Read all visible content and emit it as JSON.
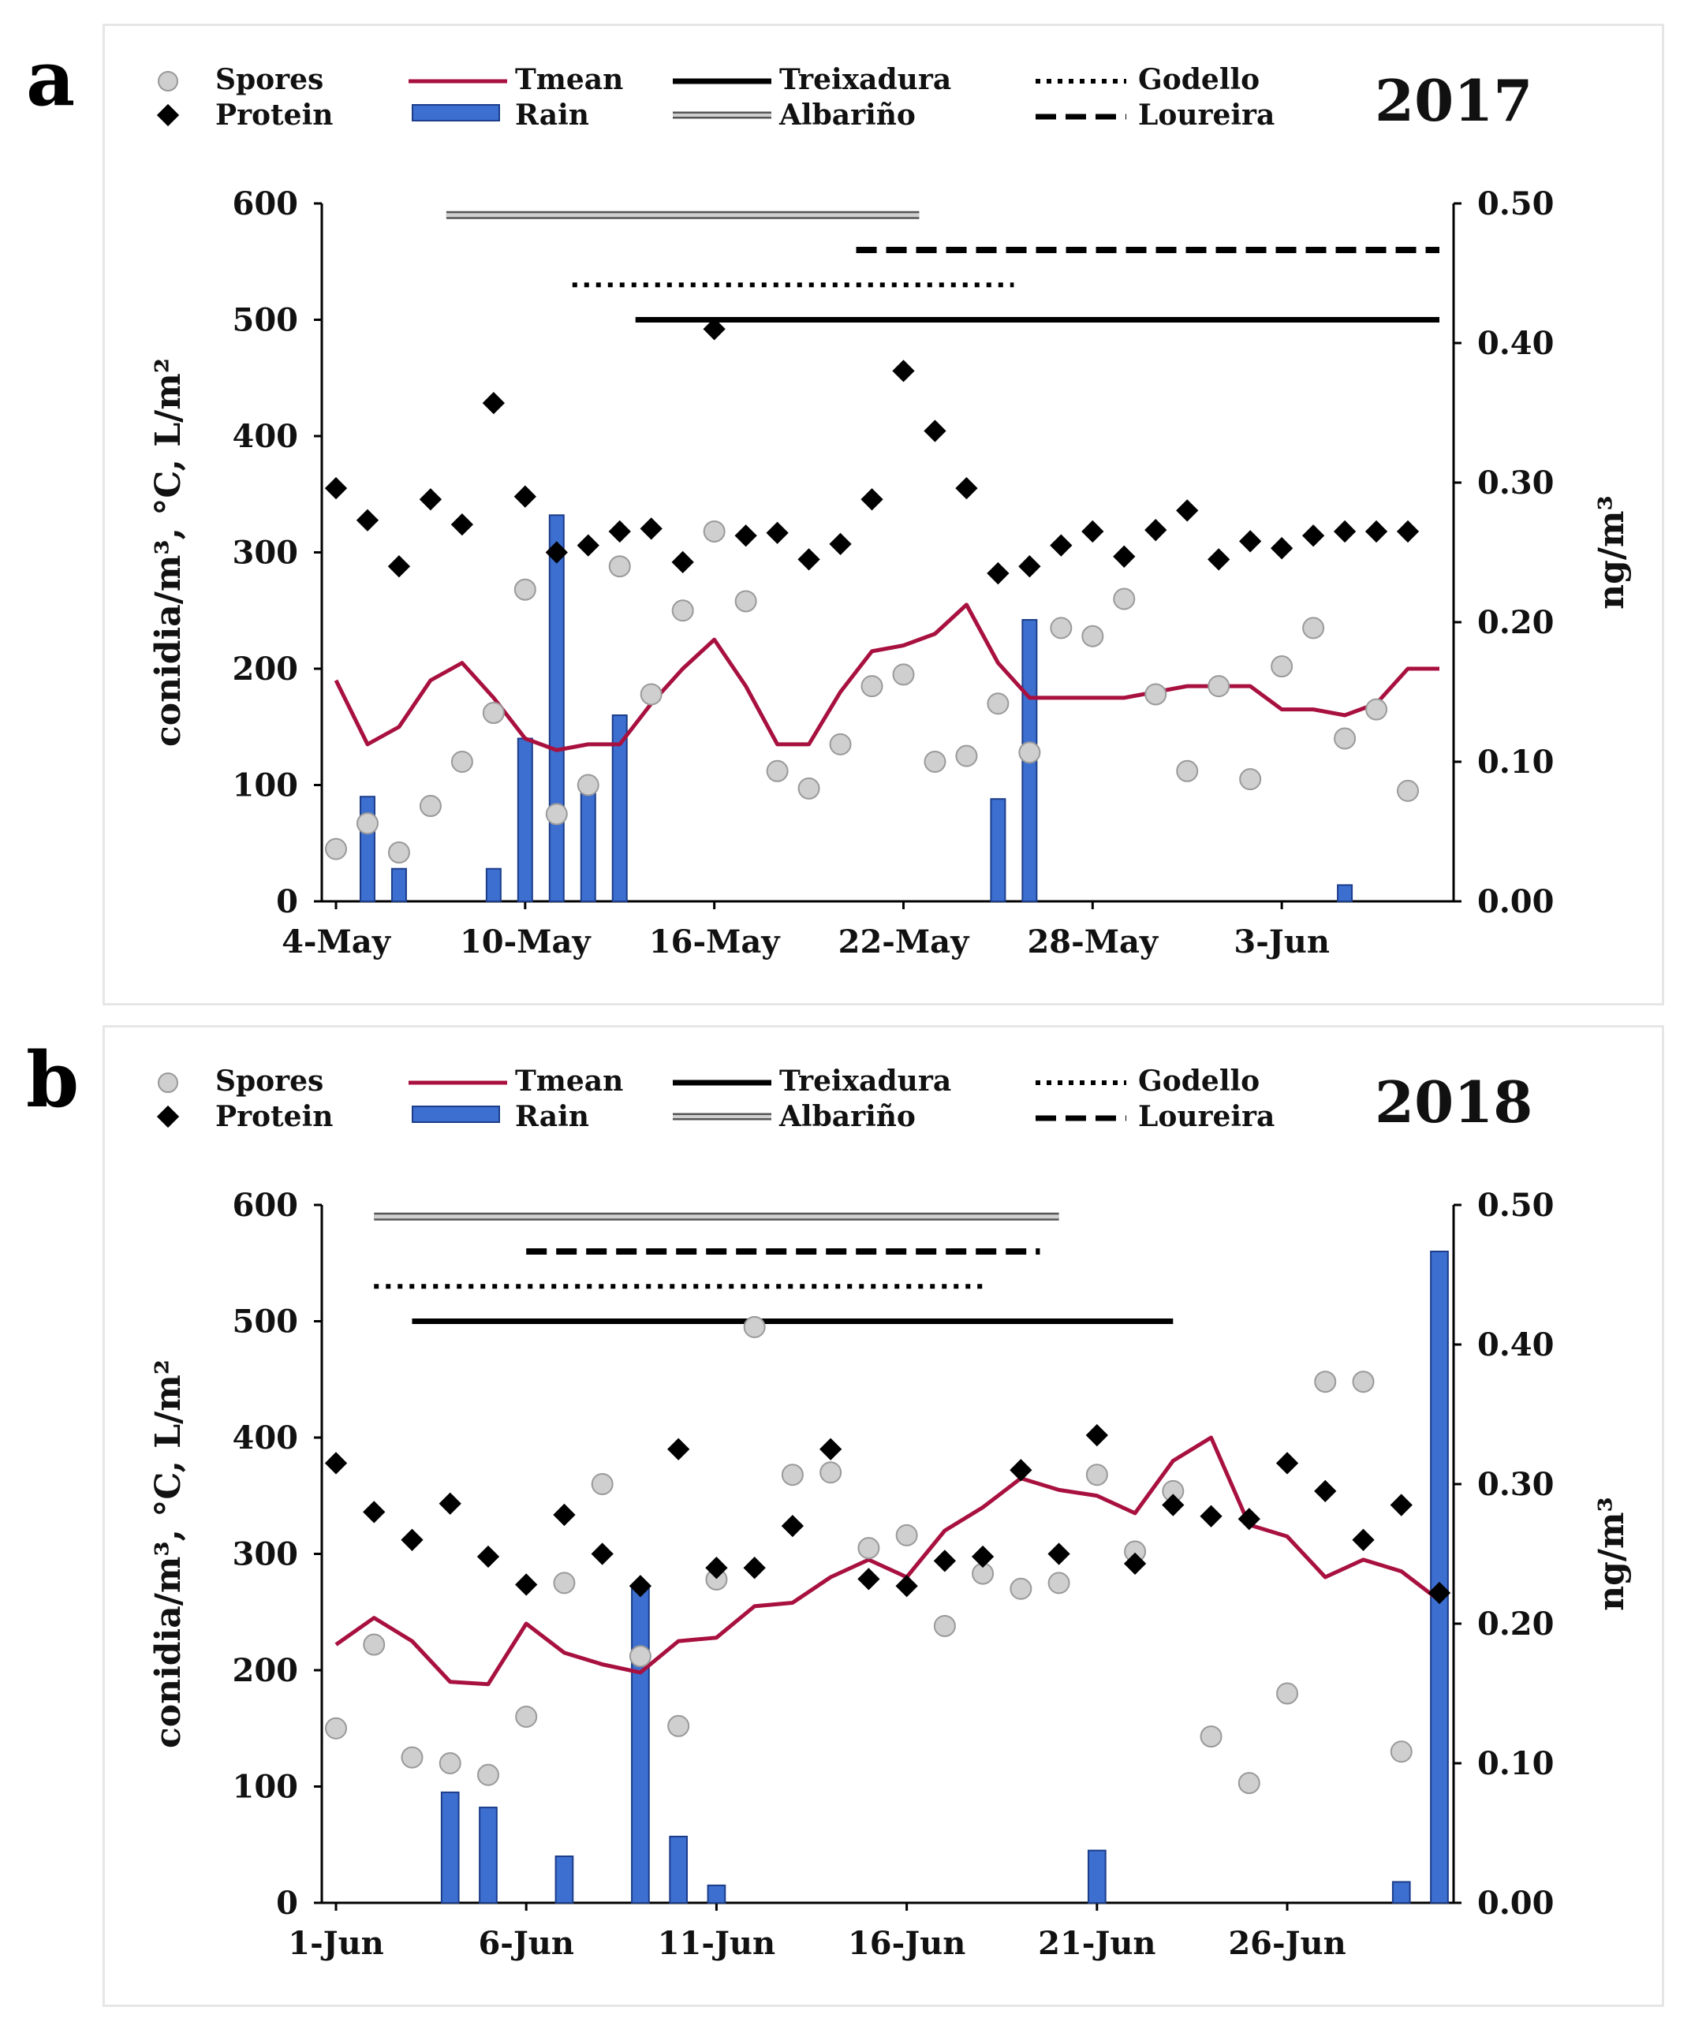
{
  "chart_data": [
    {
      "panel_label": "a",
      "year_label": "2017",
      "type": "combo-bar-line-scatter",
      "ylabel_left": "conidia/m³, °C, L/m²",
      "ylabel_right": "ng/m³",
      "ylim_left": [
        0,
        600
      ],
      "ylim_right": [
        0,
        0.5
      ],
      "yticks_left": [
        "0",
        "100",
        "200",
        "300",
        "400",
        "500",
        "600"
      ],
      "yticks_right": [
        "0.00",
        "0.10",
        "0.20",
        "0.30",
        "0.40",
        "0.50"
      ],
      "xtick_labels": [
        "4-May",
        "10-May",
        "16-May",
        "22-May",
        "28-May",
        "3-Jun"
      ],
      "xtick_days": [
        0,
        6,
        12,
        18,
        24,
        30
      ],
      "x_days": 35,
      "legend": {
        "spores": "Spores",
        "protein": "Protein",
        "tmean": "Tmean",
        "rain": "Rain",
        "treixadura": "Treixadura",
        "albarino": "Albariño",
        "godello": "Godello",
        "loureira": "Loureira"
      },
      "colors": {
        "tmean": "#a8113f",
        "rain": "#3c6fd0",
        "spores": "#cfcfcf",
        "protein": "#000000",
        "albarino": "#9a9a9a"
      },
      "series": {
        "spores": [
          [
            0,
            45
          ],
          [
            1,
            67
          ],
          [
            2,
            42
          ],
          [
            3,
            82
          ],
          [
            4,
            120
          ],
          [
            5,
            162
          ],
          [
            6,
            268
          ],
          [
            7,
            75
          ],
          [
            8,
            100
          ],
          [
            9,
            288
          ],
          [
            10,
            178
          ],
          [
            11,
            250
          ],
          [
            12,
            318
          ],
          [
            13,
            258
          ],
          [
            14,
            112
          ],
          [
            15,
            97
          ],
          [
            16,
            135
          ],
          [
            17,
            185
          ],
          [
            18,
            195
          ],
          [
            19,
            120
          ],
          [
            20,
            125
          ],
          [
            21,
            170
          ],
          [
            22,
            128
          ],
          [
            23,
            235
          ],
          [
            24,
            228
          ],
          [
            25,
            260
          ],
          [
            26,
            178
          ],
          [
            27,
            112
          ],
          [
            28,
            185
          ],
          [
            29,
            105
          ],
          [
            30,
            202
          ],
          [
            31,
            235
          ],
          [
            32,
            140
          ],
          [
            33,
            165
          ],
          [
            34,
            95
          ]
        ],
        "protein": [
          [
            0,
            0.296
          ],
          [
            1,
            0.273
          ],
          [
            2,
            0.24
          ],
          [
            3,
            0.288
          ],
          [
            4,
            0.27
          ],
          [
            5,
            0.357
          ],
          [
            6,
            0.29
          ],
          [
            7,
            0.25
          ],
          [
            8,
            0.255
          ],
          [
            9,
            0.265
          ],
          [
            10,
            0.267
          ],
          [
            11,
            0.243
          ],
          [
            12,
            0.41
          ],
          [
            13,
            0.262
          ],
          [
            14,
            0.264
          ],
          [
            15,
            0.245
          ],
          [
            16,
            0.256
          ],
          [
            17,
            0.288
          ],
          [
            18,
            0.38
          ],
          [
            19,
            0.337
          ],
          [
            20,
            0.296
          ],
          [
            21,
            0.235
          ],
          [
            22,
            0.24
          ],
          [
            23,
            0.255
          ],
          [
            24,
            0.265
          ],
          [
            25,
            0.247
          ],
          [
            26,
            0.266
          ],
          [
            27,
            0.28
          ],
          [
            28,
            0.245
          ],
          [
            29,
            0.258
          ],
          [
            30,
            0.253
          ],
          [
            31,
            0.262
          ],
          [
            32,
            0.265
          ],
          [
            33,
            0.265
          ],
          [
            34,
            0.265
          ]
        ],
        "tmean": [
          [
            0,
            190
          ],
          [
            1,
            135
          ],
          [
            2,
            150
          ],
          [
            3,
            190
          ],
          [
            4,
            205
          ],
          [
            5,
            175
          ],
          [
            6,
            140
          ],
          [
            7,
            130
          ],
          [
            8,
            135
          ],
          [
            9,
            135
          ],
          [
            10,
            170
          ],
          [
            11,
            200
          ],
          [
            12,
            225
          ],
          [
            13,
            185
          ],
          [
            14,
            135
          ],
          [
            15,
            135
          ],
          [
            16,
            180
          ],
          [
            17,
            215
          ],
          [
            18,
            220
          ],
          [
            19,
            230
          ],
          [
            20,
            255
          ],
          [
            21,
            205
          ],
          [
            22,
            175
          ],
          [
            23,
            175
          ],
          [
            24,
            175
          ],
          [
            25,
            175
          ],
          [
            26,
            180
          ],
          [
            27,
            185
          ],
          [
            28,
            185
          ],
          [
            29,
            185
          ],
          [
            30,
            165
          ],
          [
            31,
            165
          ],
          [
            32,
            160
          ],
          [
            33,
            170
          ],
          [
            34,
            200
          ],
          [
            35,
            200
          ]
        ],
        "rain": [
          [
            1,
            90
          ],
          [
            2,
            28
          ],
          [
            5,
            28
          ],
          [
            6,
            140
          ],
          [
            7,
            332
          ],
          [
            8,
            95
          ],
          [
            9,
            160
          ],
          [
            21,
            88
          ],
          [
            22,
            242
          ],
          [
            32,
            14
          ]
        ]
      },
      "cultivar_periods": {
        "albarino": {
          "level": 590,
          "start": 3.5,
          "end": 18.5
        },
        "loureira": {
          "level": 560,
          "start": 16.5,
          "end": 35
        },
        "godello": {
          "level": 530,
          "start": 7.5,
          "end": 21.5
        },
        "treixadura": {
          "level": 500,
          "start": 9.5,
          "end": 35
        }
      }
    },
    {
      "panel_label": "b",
      "year_label": "2018",
      "type": "combo-bar-line-scatter",
      "ylabel_left": "conidia/m³, °C, L/m²",
      "ylabel_right": "ng/m³",
      "ylim_left": [
        0,
        600
      ],
      "ylim_right": [
        0,
        0.5
      ],
      "yticks_left": [
        "0",
        "100",
        "200",
        "300",
        "400",
        "500",
        "600"
      ],
      "yticks_right": [
        "0.00",
        "0.10",
        "0.20",
        "0.30",
        "0.40",
        "0.50"
      ],
      "xtick_labels": [
        "1-Jun",
        "6-Jun",
        "11-Jun",
        "16-Jun",
        "21-Jun",
        "26-Jun"
      ],
      "xtick_days": [
        0,
        5,
        10,
        15,
        20,
        25
      ],
      "x_days": 29,
      "legend": {
        "spores": "Spores",
        "protein": "Protein",
        "tmean": "Tmean",
        "rain": "Rain",
        "treixadura": "Treixadura",
        "albarino": "Albariño",
        "godello": "Godello",
        "loureira": "Loureira"
      },
      "colors": {
        "tmean": "#a8113f",
        "rain": "#3c6fd0",
        "spores": "#cfcfcf",
        "protein": "#000000",
        "albarino": "#9a9a9a"
      },
      "series": {
        "spores": [
          [
            0,
            150
          ],
          [
            1,
            222
          ],
          [
            2,
            125
          ],
          [
            3,
            120
          ],
          [
            4,
            110
          ],
          [
            5,
            160
          ],
          [
            6,
            275
          ],
          [
            7,
            360
          ],
          [
            8,
            212
          ],
          [
            9,
            152
          ],
          [
            10,
            278
          ],
          [
            11,
            495
          ],
          [
            12,
            368
          ],
          [
            13,
            370
          ],
          [
            14,
            305
          ],
          [
            15,
            316
          ],
          [
            16,
            238
          ],
          [
            17,
            283
          ],
          [
            18,
            270
          ],
          [
            19,
            275
          ],
          [
            20,
            368
          ],
          [
            21,
            302
          ],
          [
            22,
            354
          ],
          [
            23,
            143
          ],
          [
            24,
            103
          ],
          [
            25,
            180
          ],
          [
            26,
            448
          ],
          [
            27,
            448
          ],
          [
            28,
            130
          ]
        ],
        "protein": [
          [
            0,
            0.315
          ],
          [
            1,
            0.28
          ],
          [
            2,
            0.26
          ],
          [
            3,
            0.286
          ],
          [
            4,
            0.248
          ],
          [
            5,
            0.228
          ],
          [
            6,
            0.278
          ],
          [
            7,
            0.25
          ],
          [
            8,
            0.227
          ],
          [
            9,
            0.325
          ],
          [
            10,
            0.24
          ],
          [
            11,
            0.24
          ],
          [
            12,
            0.27
          ],
          [
            13,
            0.325
          ],
          [
            14,
            0.232
          ],
          [
            15,
            0.227
          ],
          [
            16,
            0.245
          ],
          [
            17,
            0.248
          ],
          [
            18,
            0.31
          ],
          [
            19,
            0.25
          ],
          [
            20,
            0.335
          ],
          [
            21,
            0.243
          ],
          [
            22,
            0.285
          ],
          [
            23,
            0.277
          ],
          [
            24,
            0.275
          ],
          [
            25,
            0.315
          ],
          [
            26,
            0.295
          ],
          [
            27,
            0.26
          ],
          [
            28,
            0.285
          ],
          [
            29,
            0.222
          ]
        ],
        "tmean": [
          [
            0,
            222
          ],
          [
            1,
            245
          ],
          [
            2,
            225
          ],
          [
            3,
            190
          ],
          [
            4,
            188
          ],
          [
            5,
            240
          ],
          [
            6,
            215
          ],
          [
            7,
            205
          ],
          [
            8,
            198
          ],
          [
            9,
            225
          ],
          [
            10,
            228
          ],
          [
            11,
            255
          ],
          [
            12,
            258
          ],
          [
            13,
            280
          ],
          [
            14,
            295
          ],
          [
            15,
            280
          ],
          [
            16,
            320
          ],
          [
            17,
            340
          ],
          [
            18,
            365
          ],
          [
            19,
            355
          ],
          [
            20,
            350
          ],
          [
            21,
            335
          ],
          [
            22,
            380
          ],
          [
            23,
            400
          ],
          [
            24,
            325
          ],
          [
            25,
            315
          ],
          [
            26,
            280
          ],
          [
            27,
            295
          ],
          [
            28,
            285
          ],
          [
            29,
            260
          ]
        ],
        "rain": [
          [
            3,
            95
          ],
          [
            4,
            82
          ],
          [
            6,
            40
          ],
          [
            8,
            270
          ],
          [
            9,
            57
          ],
          [
            10,
            15
          ],
          [
            20,
            45
          ],
          [
            28,
            18
          ],
          [
            29,
            560
          ]
        ]
      },
      "cultivar_periods": {
        "albarino": {
          "level": 590,
          "start": 1,
          "end": 19
        },
        "loureira": {
          "level": 560,
          "start": 5,
          "end": 18.5
        },
        "godello": {
          "level": 530,
          "start": 1,
          "end": 17
        },
        "treixadura": {
          "level": 500,
          "start": 2,
          "end": 22
        }
      }
    }
  ]
}
